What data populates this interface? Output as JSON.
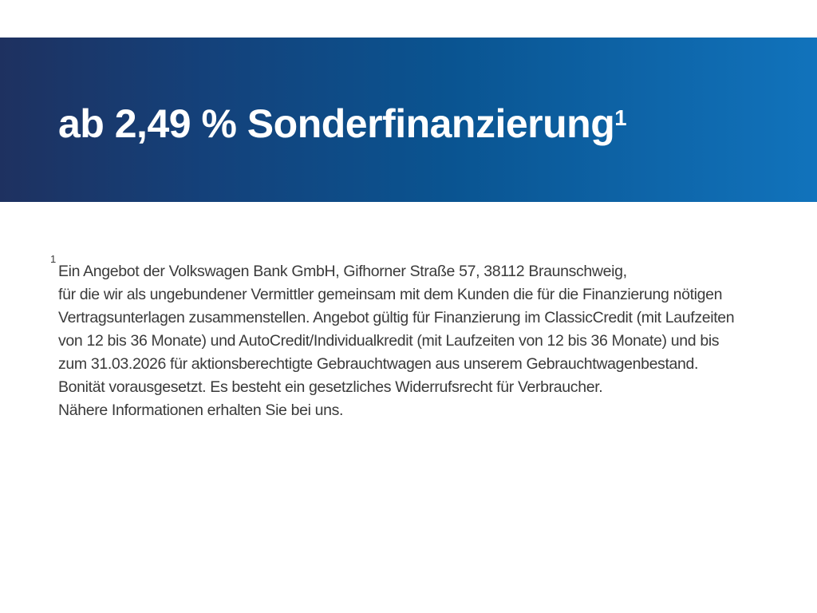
{
  "slide": {
    "title": "ab 2,49 % Sonderfinanzierung",
    "title_footnote_marker": "1",
    "footnote": {
      "marker": "1",
      "text": "Ein Angebot der Volkswagen Bank GmbH, Gifhorner Straße 57, 38112 Braunschweig,\nfür die wir als ungebundener Vermittler gemeinsam mit dem Kunden die für die Finanzierung nötigen\nVertragsunterlagen zusammenstellen. Angebot gültig für Finanzierung im ClassicCredit (mit Laufzeiten\nvon 12 bis 36 Monate) und AutoCredit/Individualkredit (mit Laufzeiten von 12 bis 36 Monate) und bis\nzum 31.03.2026 für aktionsberechtigte Gebrauchtwagen aus unserem Gebrauchtwagenbestand.\nBonität vorausgesetzt. Es besteht ein gesetzliches Widerrufsrecht für Verbraucher.\nNähere Informationen erhalten Sie bei uns."
    },
    "colors": {
      "band_gradient_left": "#1e3160",
      "band_gradient_mid": "#0a5491",
      "band_gradient_right": "#1173bc",
      "title_text": "#ffffff",
      "body_text": "#3a3a3a",
      "background": "#ffffff"
    }
  }
}
